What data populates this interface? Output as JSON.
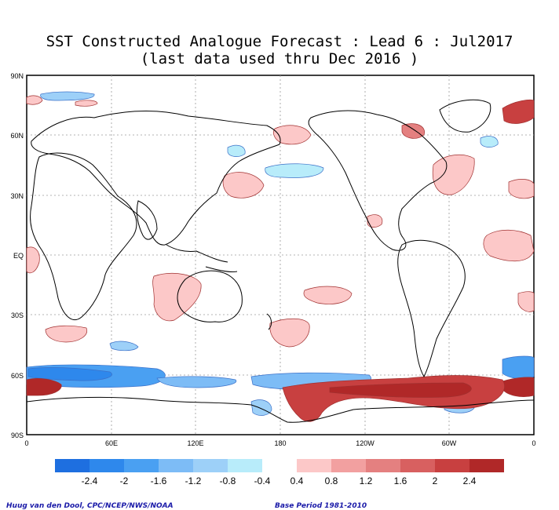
{
  "title": {
    "line1": "SST Constructed Analogue Forecast : Lead 6 : Jul2017",
    "line2": "(last data used thru Dec 2016 )"
  },
  "map": {
    "lat_labels": [
      "90N",
      "60N",
      "30N",
      "EQ",
      "30S",
      "60S",
      "90S"
    ],
    "lon_labels": [
      "0",
      "60E",
      "120E",
      "180",
      "120W",
      "60W",
      "0"
    ]
  },
  "colorbar": {
    "neg_colors": [
      "#1e6fe0",
      "#2e88ec",
      "#4aa0f2",
      "#7dbcf6",
      "#9dd0f8",
      "#b8ecfa"
    ],
    "pos_colors": [
      "#fcc8c8",
      "#f2a0a0",
      "#e48080",
      "#d86060",
      "#c84040",
      "#b02828"
    ],
    "neg_labels": [
      "-2.4",
      "-2",
      "-1.6",
      "-1.2",
      "-0.8",
      "-0.4"
    ],
    "pos_labels": [
      "0.4",
      "0.8",
      "1.2",
      "1.6",
      "2",
      "2.4"
    ]
  },
  "credits": {
    "left": "Huug van den Dool, CPC/NCEP/NWS/NOAA",
    "right": "Base Period 1981-2010"
  }
}
